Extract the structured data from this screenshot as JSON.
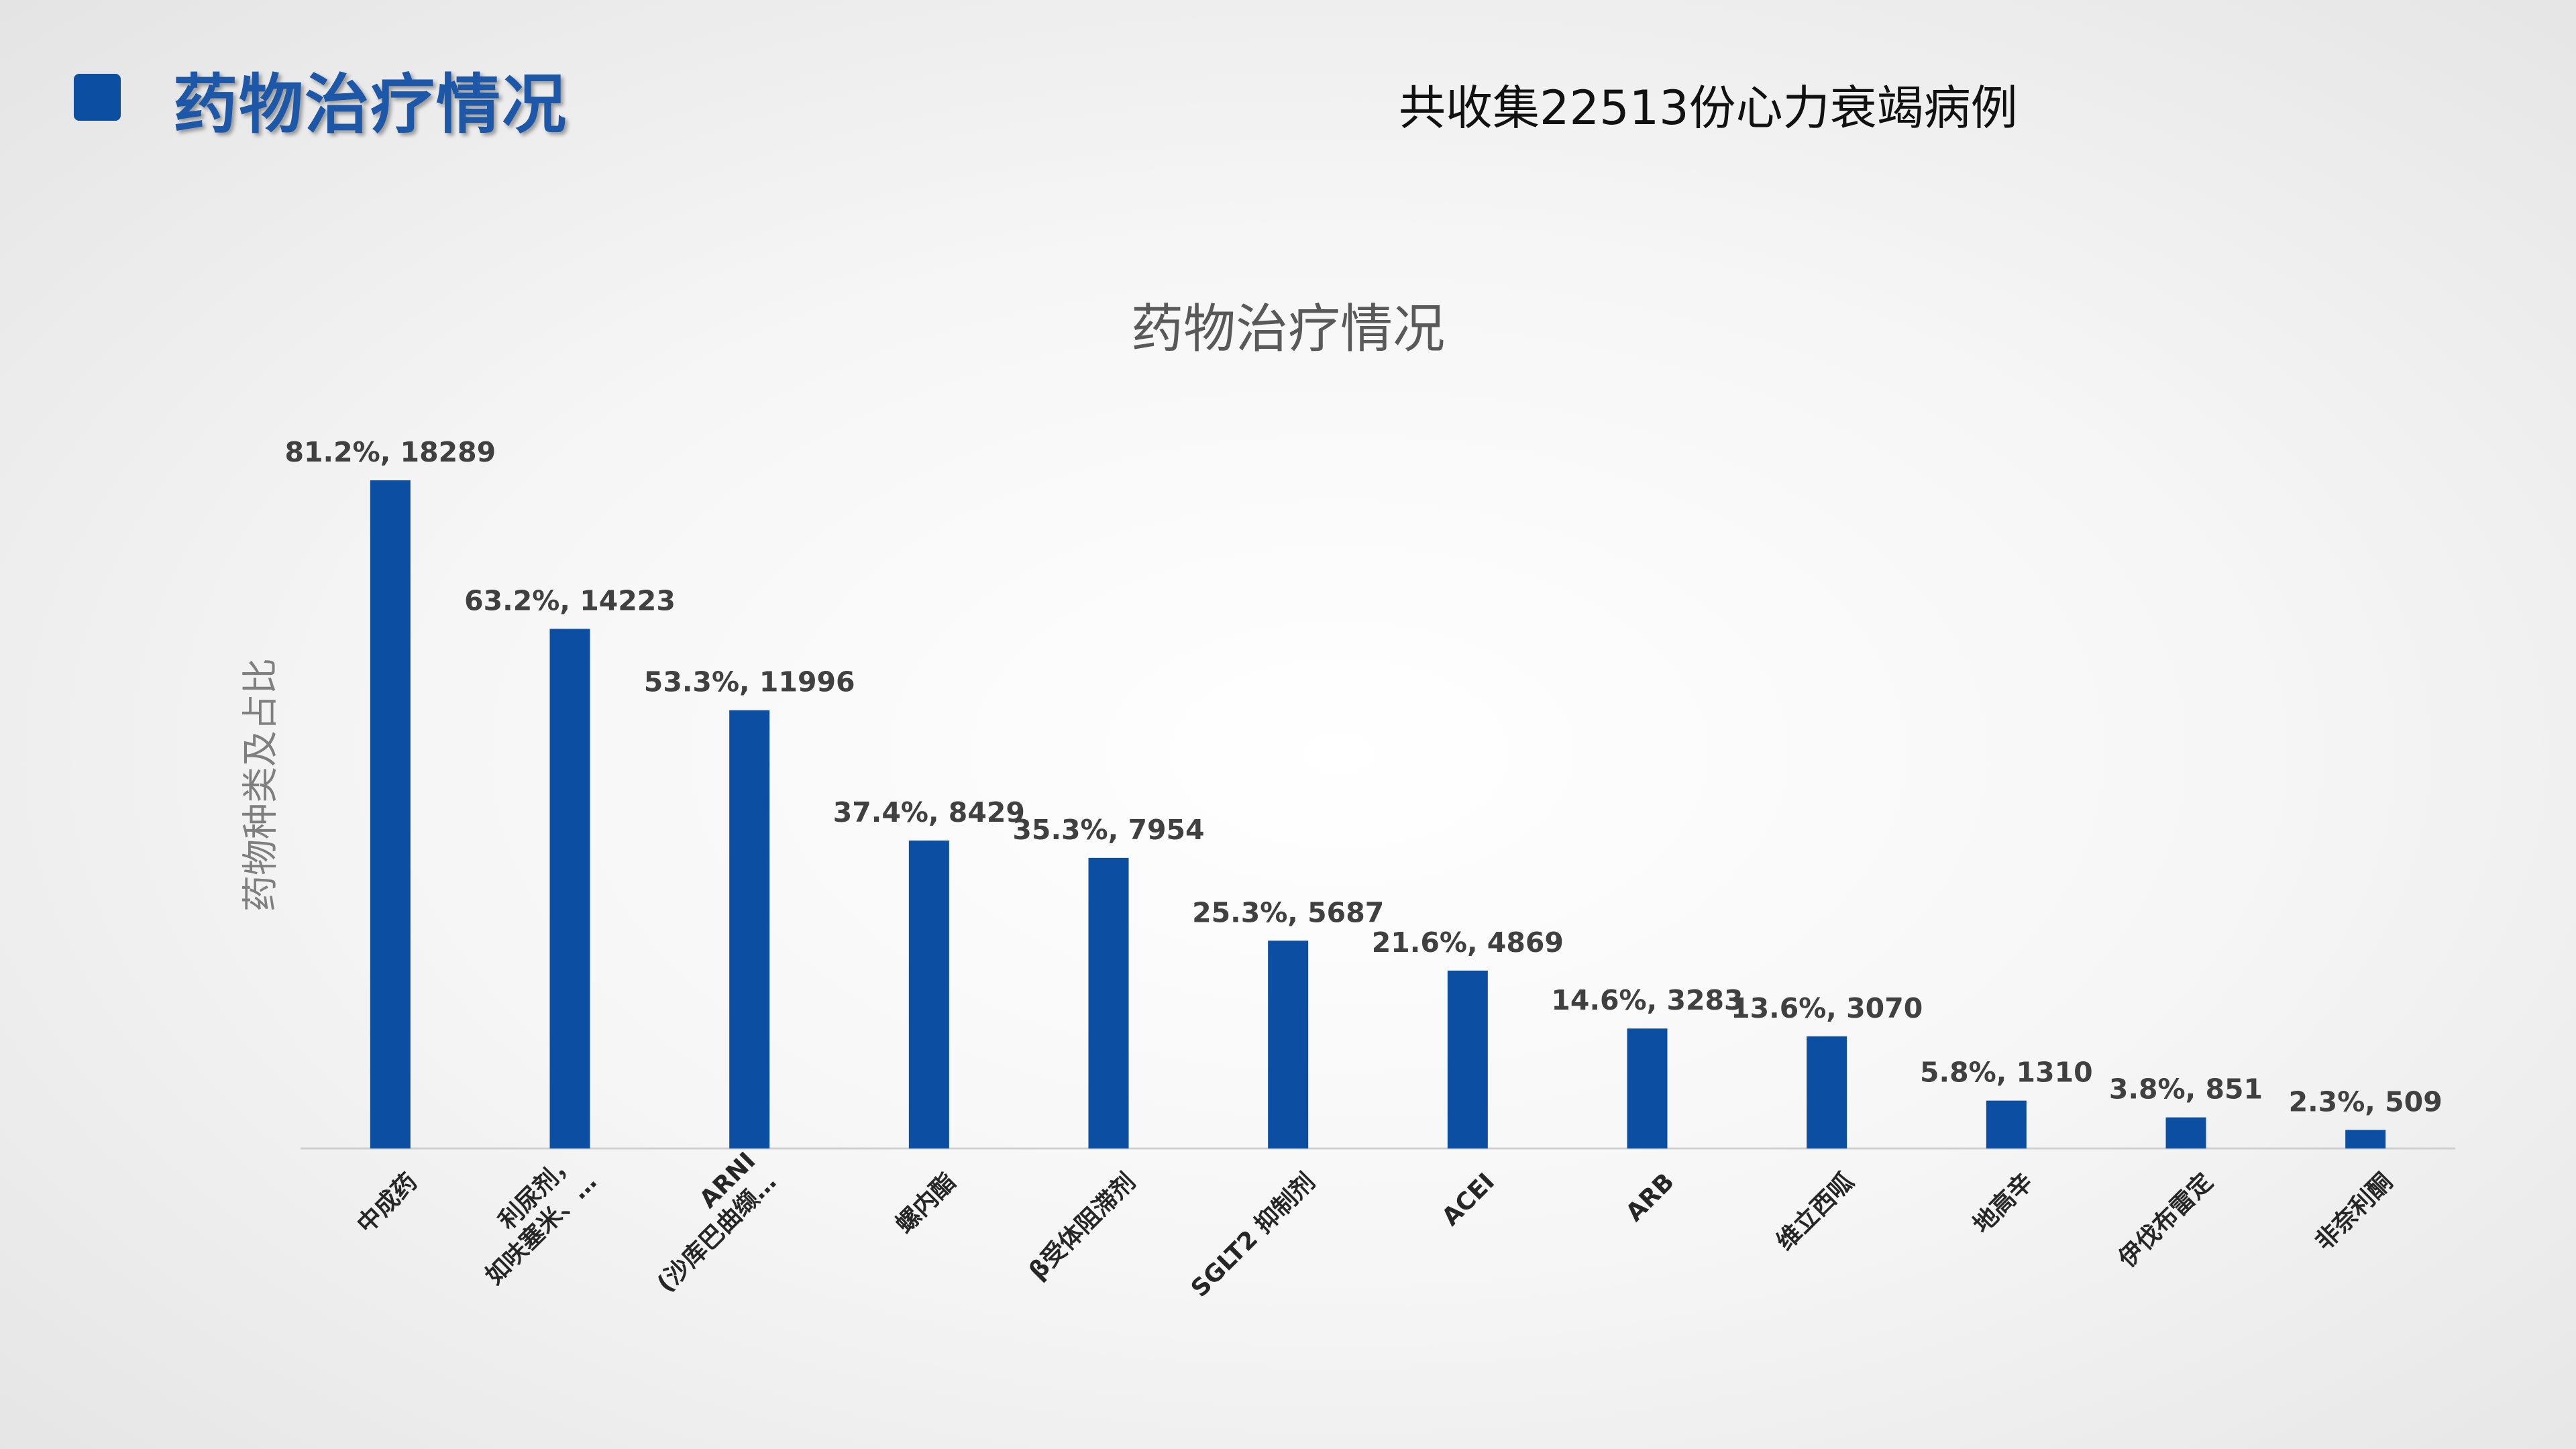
{
  "header": {
    "title": "药物治疗情况",
    "subtitle": "共收集22513份心力衰竭病例"
  },
  "colors": {
    "accent": "#0b4ea2",
    "bar": "#0b4ea2",
    "title_text": "#1c57a8"
  },
  "chart_data": {
    "type": "bar",
    "title": "药物治疗情况",
    "ylabel": "药物种类及占比",
    "xlabel": "",
    "grid": false,
    "legend": "none",
    "ylim": [
      0,
      18289
    ],
    "categories": [
      "中成药",
      "利尿剂，\n如呋塞米、…",
      "ARNI\n(沙库巴曲缬…",
      "螺内酯",
      "β受体阻滞剂",
      "SGLT2 抑制剂",
      "ACEI",
      "ARB",
      "维立西呱",
      "地高辛",
      "伊伐布雷定",
      "非奈利酮"
    ],
    "values": [
      18289,
      14223,
      11996,
      8429,
      7954,
      5687,
      4869,
      3283,
      3070,
      1310,
      851,
      509
    ],
    "percents": [
      "81.2%",
      "63.2%",
      "53.3%",
      "37.4%",
      "35.3%",
      "25.3%",
      "21.6%",
      "14.6%",
      "13.6%",
      "5.8%",
      "3.8%",
      "2.3%"
    ],
    "data_labels": [
      "81.2%, 18289",
      "63.2%, 14223",
      "53.3%, 11996",
      "37.4%, 8429",
      "35.3%, 7954",
      "25.3%, 5687",
      "21.6%, 4869",
      "14.6%, 3283",
      "13.6%, 3070",
      "5.8%, 1310",
      "3.8%, 851",
      "2.3%, 509"
    ]
  }
}
